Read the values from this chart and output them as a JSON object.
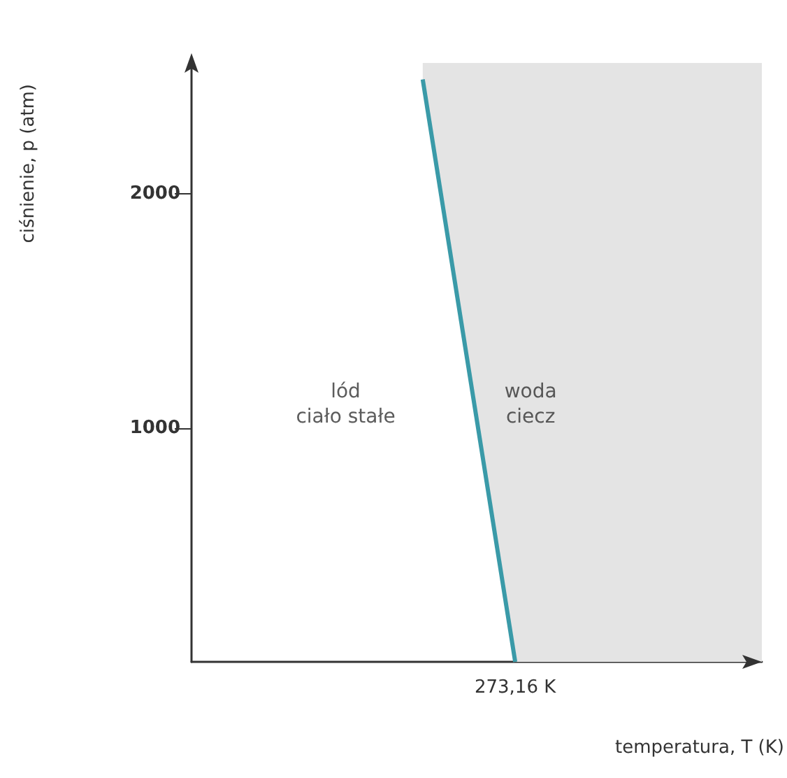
{
  "chart_data": {
    "type": "line",
    "xlabel": "temperatura, T (K)",
    "ylabel": "ciśnienie, p (atm)",
    "categories": [
      null,
      null,
      null,
      null,
      null,
      null,
      null,
      null,
      null,
      null,
      null,
      null,
      null,
      null,
      null,
      null,
      null,
      null,
      null,
      null,
      null,
      "273,16 K",
      null,
      null,
      null,
      null,
      null,
      null,
      null,
      null,
      null,
      null,
      null,
      null,
      null,
      null,
      null,
      null
    ],
    "ylim": [
      0,
      2560
    ],
    "yticks": [
      1000,
      2000
    ],
    "series": [
      {
        "color": "#3a9aa8",
        "values": [
          null,
          null,
          null,
          null,
          null,
          null,
          null,
          null,
          null,
          null,
          null,
          null,
          null,
          null,
          null,
          2490,
          null,
          null,
          null,
          null,
          null,
          0,
          null,
          null,
          null,
          null,
          null,
          null,
          null,
          null,
          null,
          null,
          null,
          null,
          null,
          null,
          null,
          null
        ]
      }
    ],
    "marker": "none",
    "annotations": [
      "lód\nciało stałe",
      "woda\nciecz"
    ]
  }
}
